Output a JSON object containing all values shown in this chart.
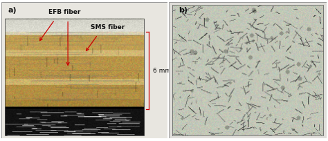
{
  "fig_width": 4.74,
  "fig_height": 2.05,
  "dpi": 100,
  "bg_color": "#ffffff",
  "panel_a_label": "a)",
  "panel_b_label": "b)",
  "label_efb": "EFB fiber",
  "label_sms": "SMS fiber",
  "label_6mm": "6 mm",
  "label_fontsize": 6.5,
  "panel_label_fontsize": 8,
  "arrow_color": "#cc0000",
  "bracket_color": "#cc0000",
  "panel_a_bg": "#d8d4cc",
  "panel_b_bg": "#c8ccc0",
  "outer_border": "#bbbbbb",
  "photo_bg_top": "#e8e4dc",
  "photo_bg_bot": "#111111",
  "fiber_tan": "#c8a060",
  "fiber_brown": "#8b6520",
  "fiber_mid": "#b08030",
  "sms_stripe": "#e0c890",
  "fiber_dark": "#6b4810"
}
